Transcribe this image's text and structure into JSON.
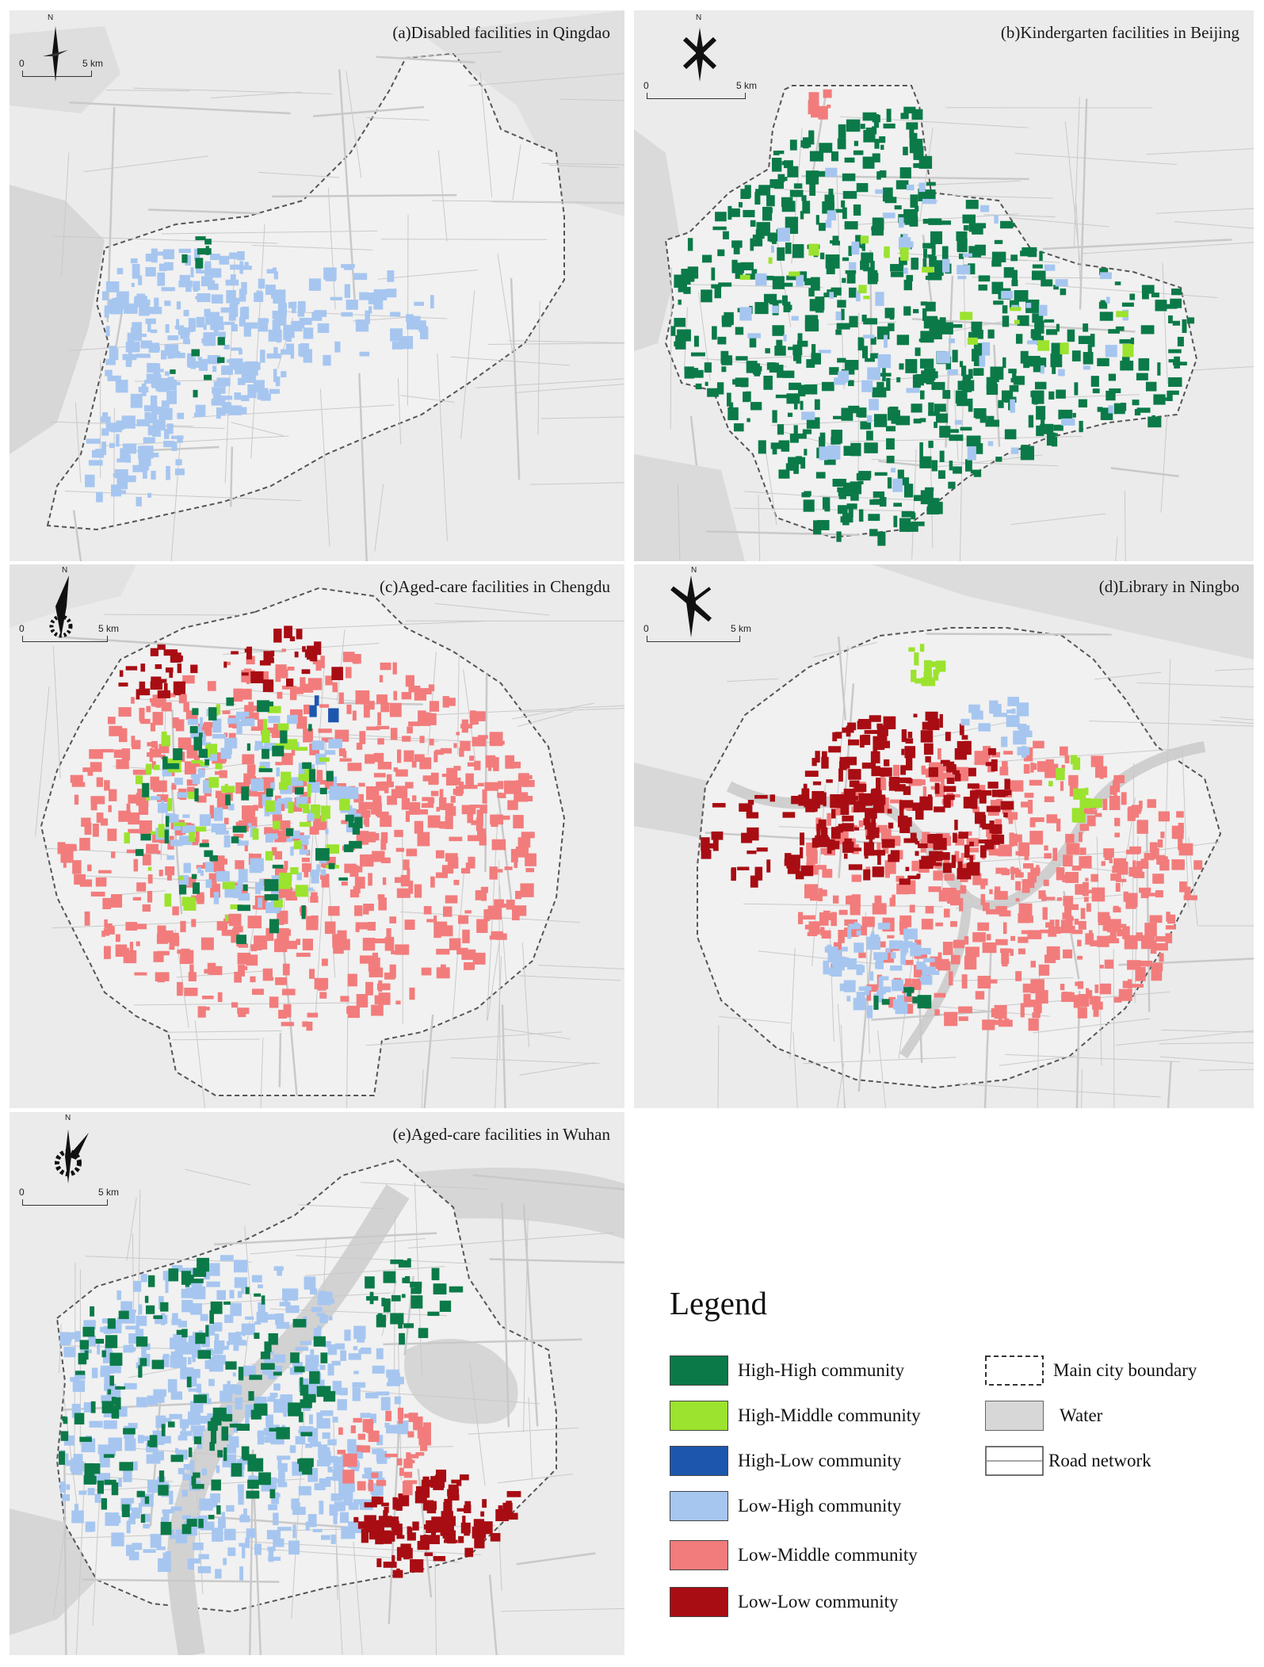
{
  "colors": {
    "high_high": "#0b7a48",
    "high_middle": "#9be32e",
    "high_low": "#1d56ad",
    "low_high": "#a6c6f0",
    "low_middle": "#f27c7c",
    "low_low": "#a80d13",
    "water": "#d7d7d7",
    "panel_bg": "#ebebeb",
    "boundary": "#555555"
  },
  "panels": [
    {
      "title": "(a)Disabled facilities in Qingdao",
      "north": "N",
      "scale_zero": "0",
      "scale_dist": "5 km"
    },
    {
      "title": "(b)Kindergarten facilities in Beijing",
      "north": "N",
      "scale_zero": "0",
      "scale_dist": "5 km"
    },
    {
      "title": "(c)Aged-care facilities in Chengdu",
      "north": "N",
      "scale_zero": "0",
      "scale_dist": "5 km"
    },
    {
      "title": "(d)Library in Ningbo",
      "north": "N",
      "scale_zero": "0",
      "scale_dist": "5 km"
    },
    {
      "title": "(e)Aged-care facilities in Wuhan",
      "north": "N",
      "scale_zero": "0",
      "scale_dist": "5 km"
    }
  ],
  "legend": {
    "title": "Legend",
    "classes": [
      {
        "label": "High-High community",
        "color": "#0b7a48"
      },
      {
        "label": "High-Middle community",
        "color": "#9be32e"
      },
      {
        "label": "High-Low community",
        "color": "#1d56ad"
      },
      {
        "label": "Low-High community",
        "color": "#a6c6f0"
      },
      {
        "label": "Low-Middle community",
        "color": "#f27c7c"
      },
      {
        "label": "Low-Low community",
        "color": "#a80d13"
      }
    ],
    "features": [
      {
        "label": "Main city boundary",
        "icon": "dashed-boundary-icon"
      },
      {
        "label": "Water",
        "icon": "water-swatch-icon"
      },
      {
        "label": "Road network",
        "icon": "road-network-icon"
      }
    ]
  }
}
